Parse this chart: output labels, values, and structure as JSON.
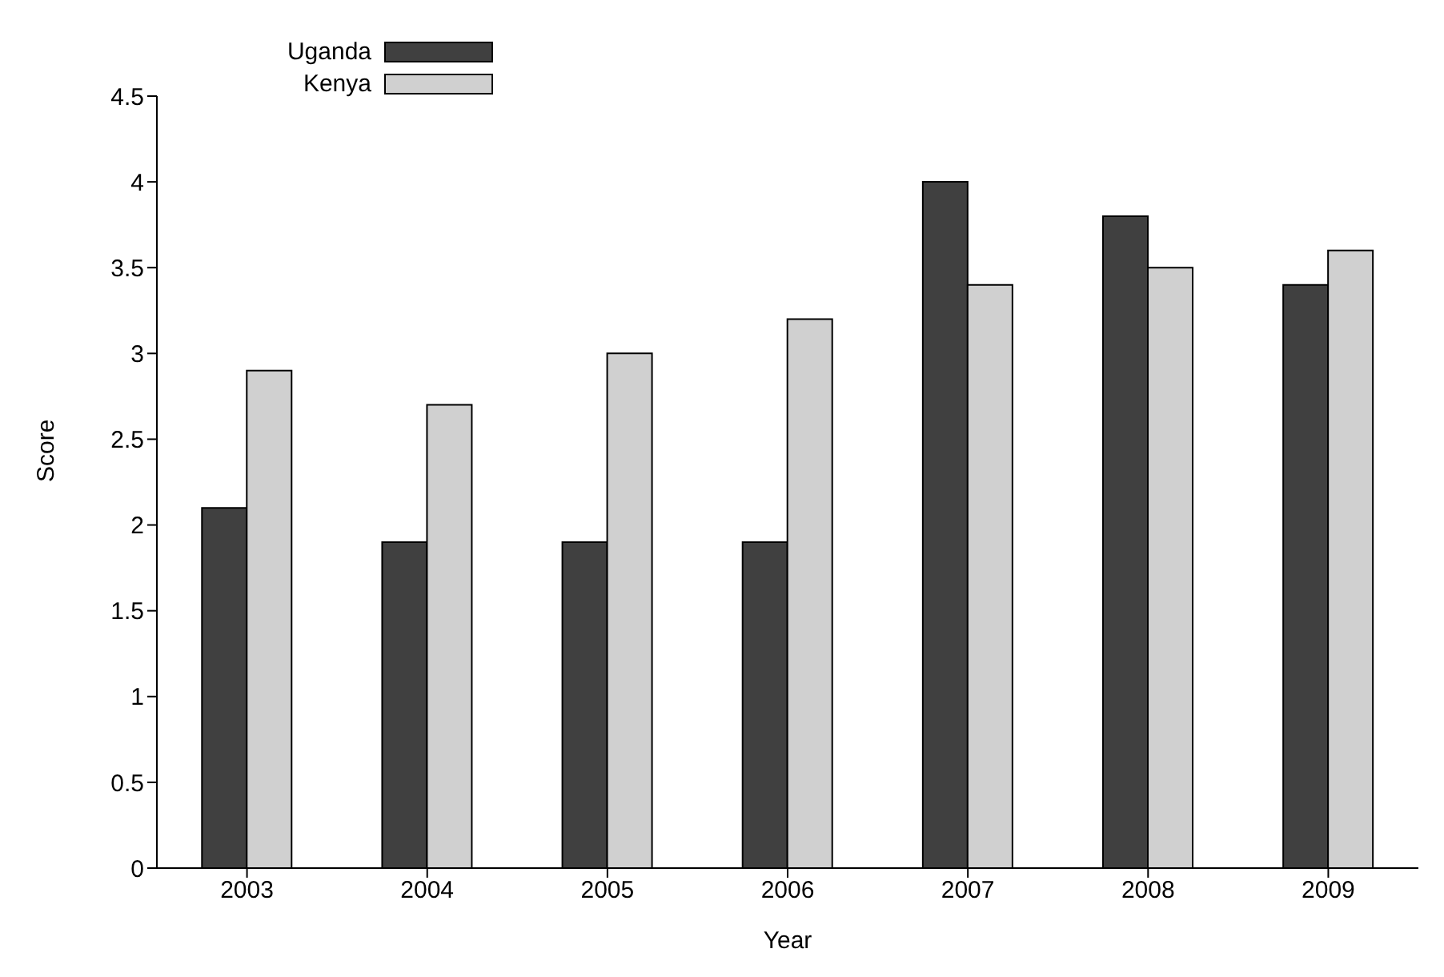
{
  "chart_data": {
    "type": "bar",
    "xlabel": "Year",
    "ylabel": "Score",
    "categories": [
      "2003",
      "2004",
      "2005",
      "2006",
      "2007",
      "2008",
      "2009"
    ],
    "series": [
      {
        "name": "Uganda",
        "color": "#404040",
        "values": [
          2.1,
          1.9,
          1.9,
          1.9,
          4.0,
          3.8,
          3.4
        ]
      },
      {
        "name": "Kenya",
        "color": "#d0d0d0",
        "values": [
          2.9,
          2.7,
          3.0,
          3.2,
          3.4,
          3.5,
          3.6
        ]
      }
    ],
    "ylim": [
      0,
      4.5
    ],
    "yticks": [
      0,
      0.5,
      1,
      1.5,
      2,
      2.5,
      3,
      3.5,
      4,
      4.5
    ],
    "grid": false,
    "legend": "top left"
  }
}
